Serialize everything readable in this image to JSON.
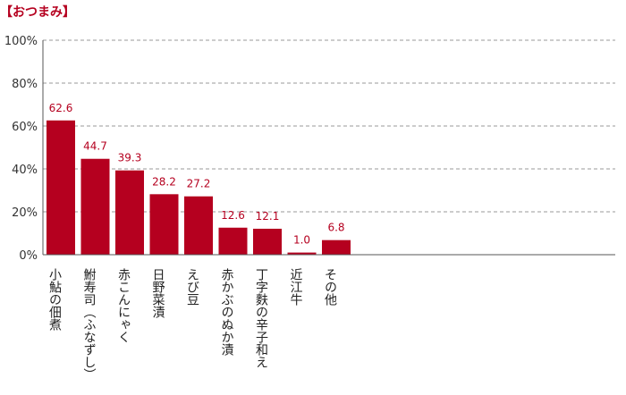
{
  "chart_data": {
    "type": "bar",
    "title": "【おつまみ】",
    "categories": [
      "小鮎の佃煮",
      "鮒寿司（ふなずし）",
      "赤こんにゃく",
      "日野菜漬",
      "えび豆",
      "赤かぶのぬか漬",
      "丁字麩の辛子和え",
      "近江牛",
      "その他"
    ],
    "values": [
      62.6,
      44.7,
      39.3,
      28.2,
      27.2,
      12.6,
      12.1,
      1.0,
      6.8
    ],
    "value_labels": [
      "62.6",
      "44.7",
      "39.3",
      "28.2",
      "27.2",
      "12.6",
      "12.1",
      "1.0",
      "6.8"
    ],
    "ylim": [
      0,
      100
    ],
    "yticks": [
      0,
      20,
      40,
      60,
      80,
      100
    ],
    "ytick_labels": [
      "0%",
      "20%",
      "40%",
      "60%",
      "80%",
      "100%"
    ],
    "grid": true,
    "xlabel": "",
    "ylabel": "",
    "bar_color": "#b5001f",
    "label_color": "#b5001f"
  }
}
